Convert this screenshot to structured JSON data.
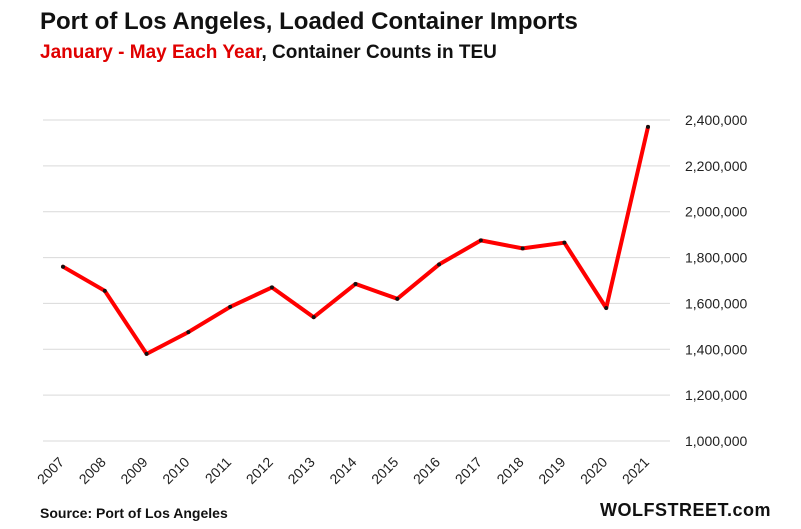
{
  "title": "Port of Los Angeles, Loaded Container Imports",
  "subtitle_highlight": "January - May Each Year",
  "subtitle_rest": ", Container Counts in TEU",
  "source": "Source: Port of Los Angeles",
  "brand": "WOLFSTREET.com",
  "colors": {
    "line": "#ff0000",
    "point": "#111111",
    "grid": "#d9d9d9"
  },
  "chart_data": {
    "type": "line",
    "categories": [
      "2007",
      "2008",
      "2009",
      "2010",
      "2011",
      "2012",
      "2013",
      "2014",
      "2015",
      "2016",
      "2017",
      "2018",
      "2019",
      "2020",
      "2021"
    ],
    "values": [
      1760000,
      1655000,
      1380000,
      1475000,
      1585000,
      1670000,
      1540000,
      1685000,
      1620000,
      1770000,
      1875000,
      1840000,
      1865000,
      1580000,
      2370000
    ],
    "ylim": [
      1000000,
      2400000
    ],
    "yticks": [
      1000000,
      1200000,
      1400000,
      1600000,
      1800000,
      2000000,
      2200000,
      2400000
    ],
    "ytick_labels": [
      "1,000,000",
      "1,200,000",
      "1,400,000",
      "1,600,000",
      "1,800,000",
      "2,000,000",
      "2,200,000",
      "2,400,000"
    ],
    "yaxis_side": "right",
    "grid": true,
    "legend": "none"
  }
}
